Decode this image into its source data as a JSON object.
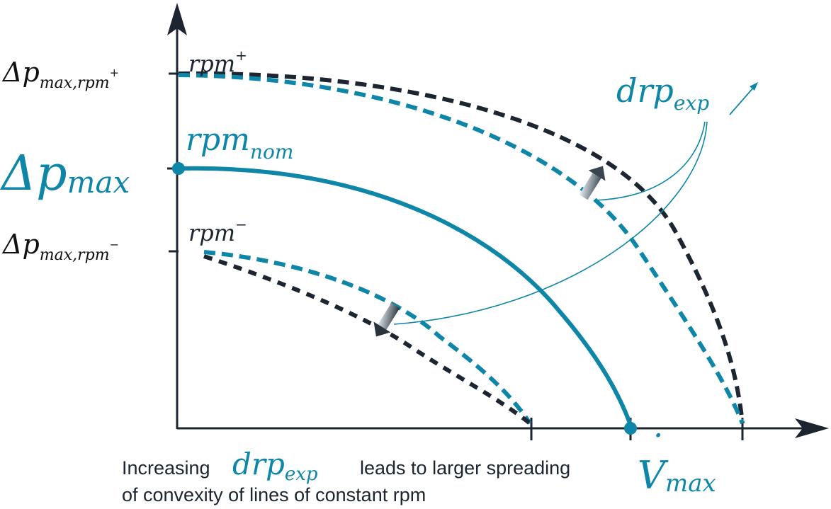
{
  "colors": {
    "teal": "#0e86a8",
    "dark": "#1c2530",
    "arrow_light": "#dfe6ea"
  },
  "labels": {
    "dp_max_plus_base": "Δp",
    "dp_max_plus_sub": "max,rpm",
    "dp_max_plus_sup": "+",
    "rpm_plus_base": "rpm",
    "rpm_plus_sup": "+",
    "dp_max_base": "Δp",
    "dp_max_sub": "max",
    "rpm_nom_base": "rpm",
    "rpm_nom_sub": "nom",
    "dp_max_minus_base": "Δp",
    "dp_max_minus_sub": "max,rpm",
    "dp_max_minus_sup": "−",
    "rpm_minus_base": "rpm",
    "rpm_minus_sup": "−",
    "drp_base": "drp",
    "drp_sub": "exp",
    "vmax_base": "V",
    "vmax_dot": "˙",
    "vmax_sub": "max"
  },
  "caption": {
    "line1_before": "Increasing",
    "line1_math_base": "drp",
    "line1_math_sub": "exp",
    "line1_after": "leads to larger spreading",
    "line2": "of convexity of lines of constant rpm"
  },
  "curves": [
    {
      "name": "rpm-plus-black",
      "color": "dark",
      "style": "dashed"
    },
    {
      "name": "rpm-plus-teal",
      "color": "teal",
      "style": "dashed"
    },
    {
      "name": "rpm-nom",
      "color": "teal",
      "style": "solid"
    },
    {
      "name": "rpm-minus-teal",
      "color": "teal",
      "style": "dashed"
    },
    {
      "name": "rpm-minus-black",
      "color": "dark",
      "style": "dashed"
    }
  ]
}
